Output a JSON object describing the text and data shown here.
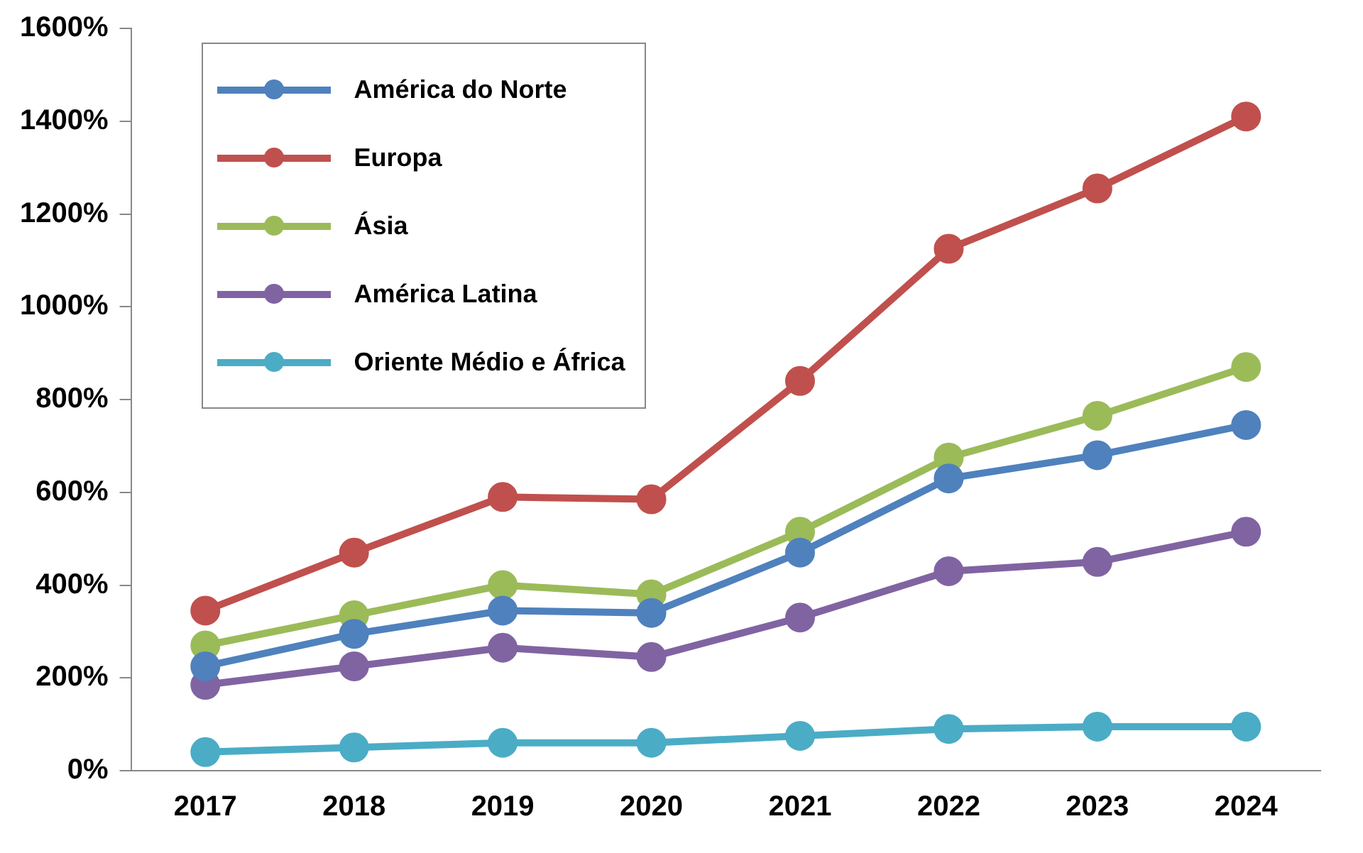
{
  "chart_data": {
    "type": "line",
    "categories": [
      "2017",
      "2018",
      "2019",
      "2020",
      "2021",
      "2022",
      "2023",
      "2024"
    ],
    "series": [
      {
        "name": "América do Norte",
        "color": "#4f81bd",
        "values": [
          225,
          295,
          345,
          340,
          470,
          630,
          680,
          745
        ]
      },
      {
        "name": "Europa",
        "color": "#c0504d",
        "values": [
          345,
          470,
          590,
          585,
          840,
          1125,
          1255,
          1410
        ]
      },
      {
        "name": "Ásia",
        "color": "#9bbb59",
        "values": [
          270,
          335,
          400,
          380,
          515,
          675,
          765,
          870
        ]
      },
      {
        "name": "América Latina",
        "color": "#8064a2",
        "values": [
          185,
          225,
          265,
          245,
          330,
          430,
          450,
          515
        ]
      },
      {
        "name": "Oriente Médio e África",
        "color": "#4bacc6",
        "values": [
          40,
          50,
          60,
          60,
          75,
          90,
          95,
          95
        ]
      }
    ],
    "ylim": [
      0,
      1600
    ],
    "yticks": [
      {
        "value": 0,
        "label": "0%"
      },
      {
        "value": 200,
        "label": "200%"
      },
      {
        "value": 400,
        "label": "400%"
      },
      {
        "value": 600,
        "label": "600%"
      },
      {
        "value": 800,
        "label": "800%"
      },
      {
        "value": 1000,
        "label": "1000%"
      },
      {
        "value": 1200,
        "label": "1200%"
      },
      {
        "value": 1400,
        "label": "1400%"
      },
      {
        "value": 1600,
        "label": "1600%"
      }
    ],
    "grid": false,
    "legend": "top left",
    "marker": "circle",
    "line_style": "solid"
  }
}
